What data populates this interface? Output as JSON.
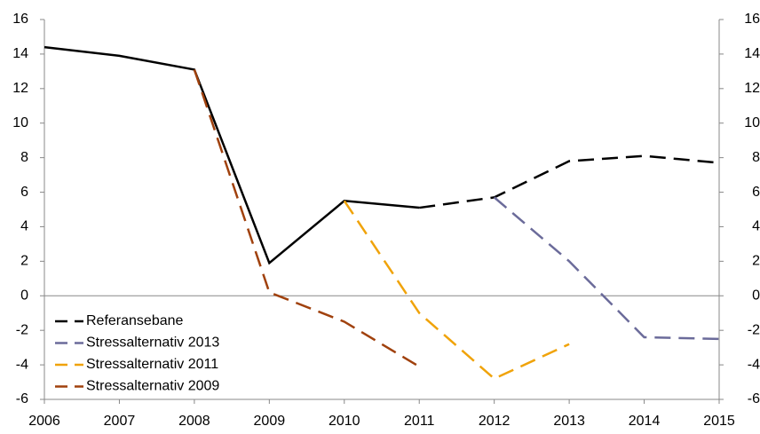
{
  "chart_data": {
    "type": "line",
    "x": [
      2006,
      2007,
      2008,
      2009,
      2010,
      2011,
      2012,
      2013,
      2014,
      2015
    ],
    "xlim": [
      2006,
      2015
    ],
    "ylim": [
      -6,
      16
    ],
    "yticks": [
      -6,
      -4,
      -2,
      0,
      2,
      4,
      6,
      8,
      10,
      12,
      14,
      16
    ],
    "y2lim": [
      -6,
      16
    ],
    "y2ticks": [
      -6,
      -4,
      -2,
      0,
      2,
      4,
      6,
      8,
      10,
      12,
      14,
      16
    ],
    "dashed_from_x": 2011,
    "legend": "lower left",
    "series": [
      {
        "name": "Referansebane",
        "color": "#000000",
        "values": [
          14.4,
          13.9,
          13.1,
          1.9,
          5.5,
          5.1,
          5.7,
          7.8,
          8.1,
          7.7
        ]
      },
      {
        "name": "Stressalternativ 2013",
        "color": "#6b6b9a",
        "values": [
          null,
          null,
          null,
          null,
          null,
          null,
          5.7,
          2.0,
          -2.4,
          -2.5
        ]
      },
      {
        "name": "Stressalternativ 2011",
        "color": "#f0a30a",
        "values": [
          null,
          null,
          null,
          null,
          5.5,
          -1.0,
          -4.8,
          -2.8,
          null,
          null
        ]
      },
      {
        "name": "Stressalternativ 2009",
        "color": "#a0410d",
        "values": [
          null,
          null,
          13.1,
          0.2,
          -1.5,
          -4.1,
          null,
          null,
          null,
          null
        ]
      }
    ]
  }
}
